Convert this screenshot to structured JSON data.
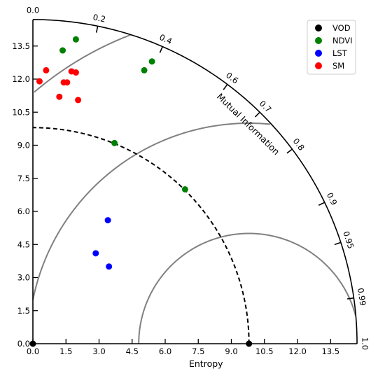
{
  "chart_data": {
    "type": "scatter",
    "subtype": "taylor-diagram",
    "xlabel": "Entropy",
    "angular_label": "Mutual Information",
    "x_ticks": [
      "0.0",
      "1.5",
      "3.0",
      "4.5",
      "6.0",
      "7.5",
      "9.0",
      "10.5",
      "12.0",
      "13.5"
    ],
    "y_ticks": [
      "0.0",
      "1.5",
      "3.0",
      "4.5",
      "6.0",
      "7.5",
      "9.0",
      "10.5",
      "12.0",
      "13.5"
    ],
    "corr_ticks": [
      "0.0",
      "0.2",
      "0.4",
      "0.6",
      "0.7",
      "0.8",
      "0.9",
      "0.95",
      "0.99",
      "1.0"
    ],
    "r_max": 14.7,
    "reference_std": 9.8,
    "centered_rms_contours": [
      5.0,
      10.0,
      15.0
    ],
    "legend_position": "top-right",
    "series": [
      {
        "name": "VOD",
        "color": "#000000",
        "points": [
          [
            0.0,
            0.0
          ],
          [
            9.8,
            0.0
          ]
        ]
      },
      {
        "name": "NDVI",
        "color": "#008000",
        "points": [
          [
            1.35,
            13.3
          ],
          [
            1.95,
            13.8
          ],
          [
            5.05,
            12.4
          ],
          [
            5.4,
            12.8
          ],
          [
            3.7,
            9.1
          ],
          [
            6.9,
            7.0
          ]
        ]
      },
      {
        "name": "LST",
        "color": "#0000ff",
        "points": [
          [
            3.4,
            5.6
          ],
          [
            2.85,
            4.1
          ],
          [
            3.45,
            3.5
          ]
        ]
      },
      {
        "name": "SM",
        "color": "#ff0000",
        "points": [
          [
            0.6,
            12.4
          ],
          [
            0.3,
            11.9
          ],
          [
            1.4,
            11.85
          ],
          [
            1.55,
            11.85
          ],
          [
            1.75,
            12.35
          ],
          [
            1.95,
            12.3
          ],
          [
            1.2,
            11.2
          ],
          [
            2.05,
            11.05
          ]
        ]
      }
    ]
  }
}
